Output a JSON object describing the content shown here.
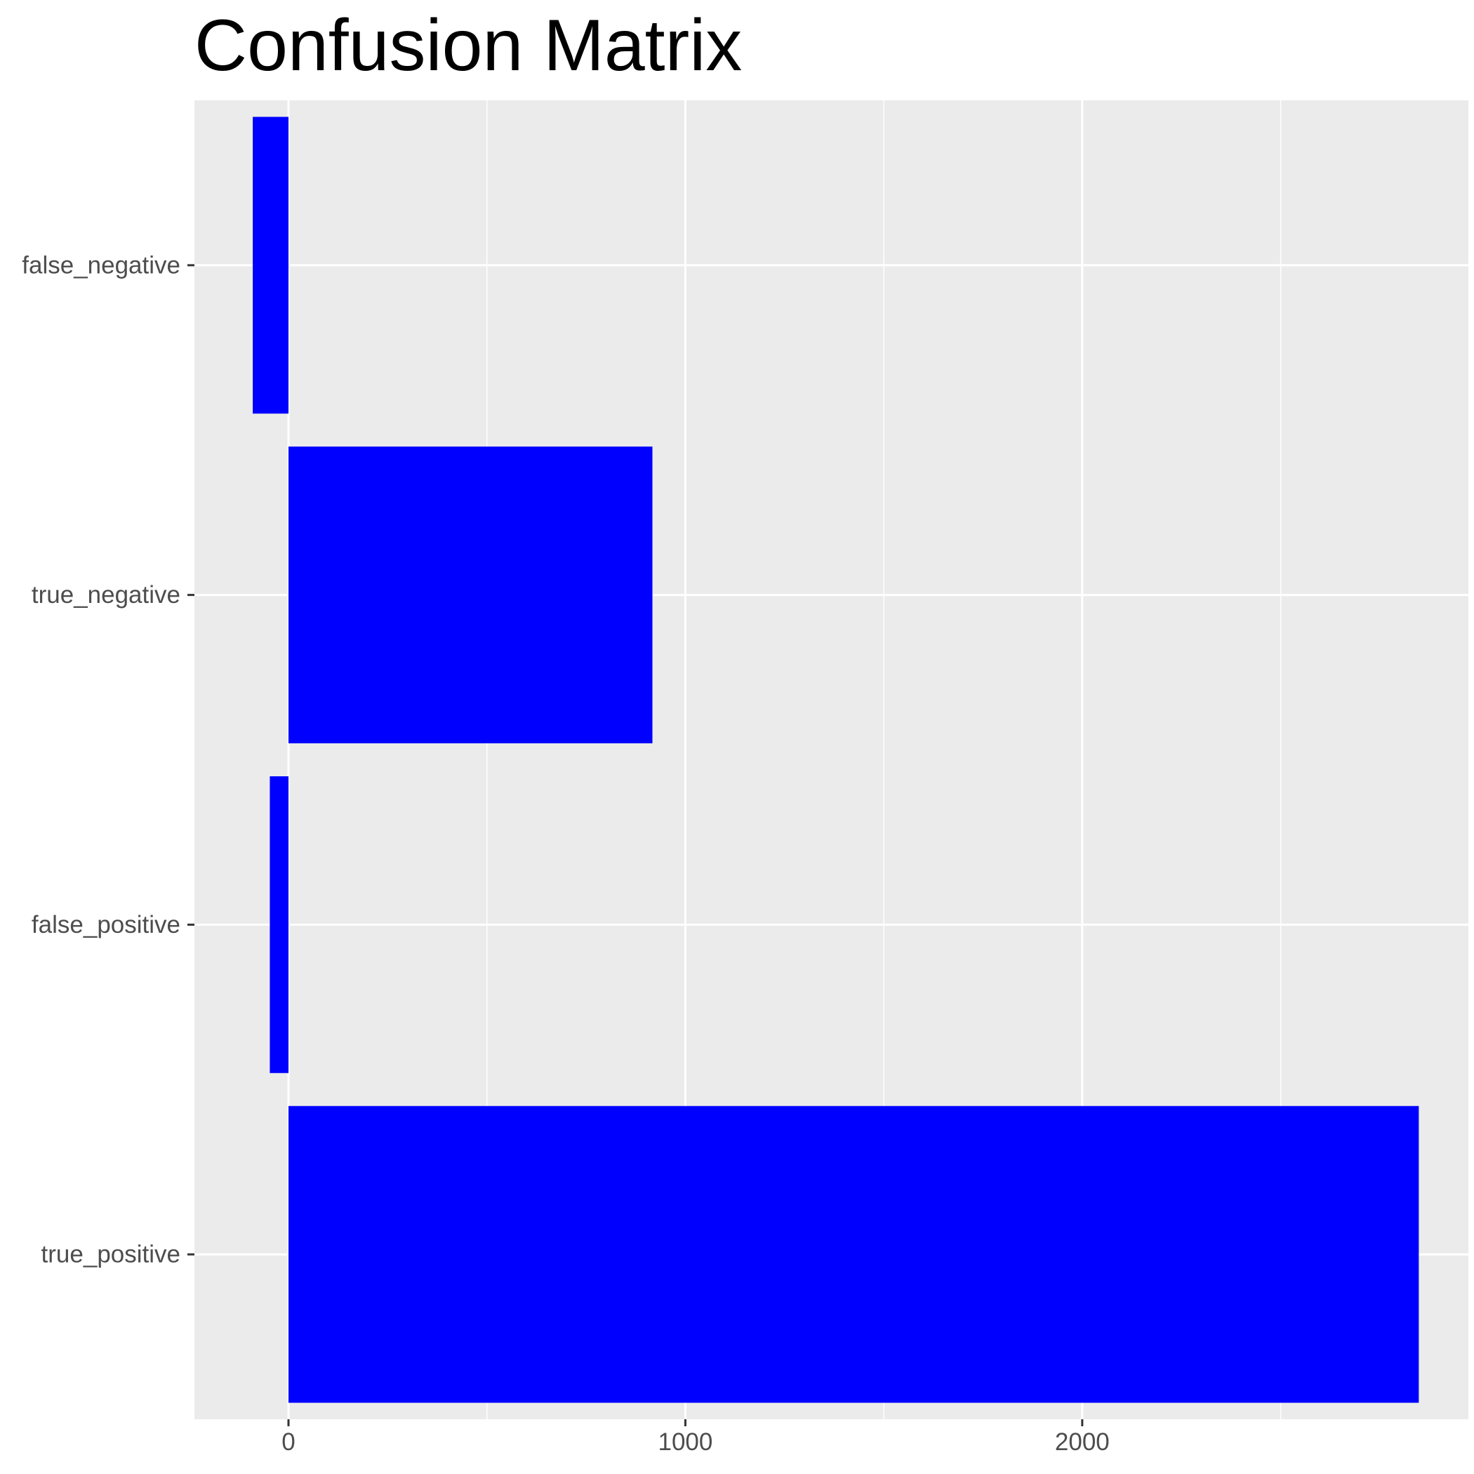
{
  "chart_data": {
    "type": "bar",
    "orientation": "horizontal",
    "title": "Confusion Matrix",
    "xlabel": "",
    "ylabel": "",
    "categories": [
      "false_negative",
      "true_negative",
      "false_positive",
      "true_positive"
    ],
    "values": [
      -90,
      917,
      -47,
      2848
    ],
    "xlim": [
      -237,
      2973
    ],
    "x_ticks": [
      0,
      1000,
      2000
    ],
    "x_tick_labels": [
      "0",
      "1000",
      "2000"
    ],
    "grid": true,
    "legend": "none",
    "bar_color": "#0000ff",
    "panel_color": "#ebebeb",
    "grid_color": "#ffffff"
  }
}
